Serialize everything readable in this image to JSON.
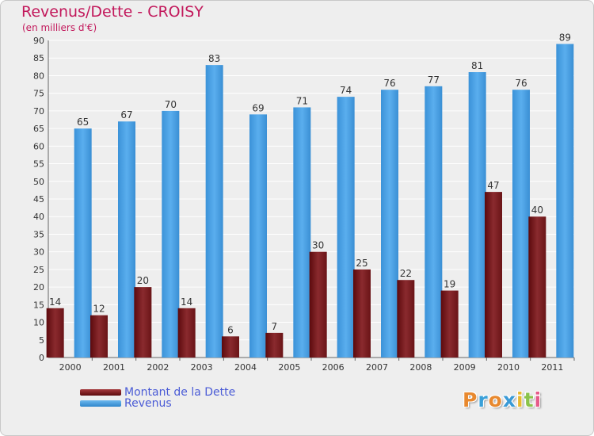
{
  "header": {
    "title": "Revenus/Dette - CROISY",
    "subtitle": "(en milliers d'€)"
  },
  "colors": {
    "title": "#c2185b",
    "debt": "#7a1f22",
    "revenue": "#4aa3e6",
    "legend_text": "#4a5bd6",
    "grid": "#ffffff",
    "background": "#eeeeee"
  },
  "chart_data": {
    "type": "bar",
    "title": "Revenus/Dette - CROISY",
    "subtitle": "(en milliers d'€)",
    "xlabel": "",
    "ylabel": "",
    "ylim": [
      0,
      90
    ],
    "yticks": [
      0,
      5,
      10,
      15,
      20,
      25,
      30,
      35,
      40,
      45,
      50,
      55,
      60,
      65,
      70,
      75,
      80,
      85,
      90
    ],
    "grid": true,
    "legend_position": "bottom-left",
    "categories": [
      "2000",
      "2001",
      "2002",
      "2003",
      "2004",
      "2005",
      "2006",
      "2007",
      "2008",
      "2009",
      "2010",
      "2011"
    ],
    "series": [
      {
        "name": "Montant de la Dette",
        "color": "#7a1f22",
        "values": [
          14,
          12,
          20,
          14,
          6,
          7,
          30,
          25,
          22,
          19,
          47,
          40
        ]
      },
      {
        "name": "Revenus",
        "color": "#4aa3e6",
        "values": [
          65,
          67,
          70,
          83,
          69,
          71,
          74,
          76,
          77,
          81,
          76,
          89
        ]
      }
    ]
  },
  "logo": {
    "letters": [
      {
        "char": "P",
        "color": "#e8892f"
      },
      {
        "char": "r",
        "color": "#3aa0d8"
      },
      {
        "char": "o",
        "color": "#e8892f"
      },
      {
        "char": "x",
        "color": "#3a9ad6"
      },
      {
        "char": "i",
        "color": "#e8b92f"
      },
      {
        "char": "t",
        "color": "#8bc34a"
      },
      {
        "char": "i",
        "color": "#e65a8a"
      }
    ]
  }
}
